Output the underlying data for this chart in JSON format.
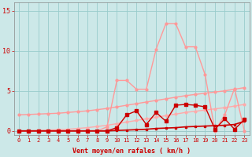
{
  "x": [
    0,
    1,
    2,
    3,
    4,
    5,
    6,
    7,
    8,
    9,
    10,
    11,
    12,
    13,
    14,
    15,
    16,
    17,
    18,
    19,
    20,
    21,
    22,
    23
  ],
  "line_pink_upper": [
    2.0,
    2.05,
    2.1,
    2.15,
    2.2,
    2.3,
    2.4,
    2.5,
    2.65,
    2.8,
    3.0,
    3.2,
    3.4,
    3.6,
    3.8,
    4.0,
    4.2,
    4.4,
    4.55,
    4.7,
    4.85,
    5.0,
    5.2,
    5.4
  ],
  "line_pink_lower": [
    0.0,
    0.0,
    0.05,
    0.1,
    0.15,
    0.2,
    0.3,
    0.4,
    0.55,
    0.7,
    0.9,
    1.1,
    1.3,
    1.5,
    1.7,
    1.9,
    2.1,
    2.3,
    2.45,
    2.6,
    2.75,
    2.9,
    3.1,
    3.3
  ],
  "line_pink_peaks": [
    0.0,
    0.0,
    0.0,
    0.0,
    0.0,
    0.0,
    0.0,
    0.0,
    0.0,
    0.5,
    6.3,
    6.3,
    5.2,
    5.2,
    10.2,
    13.4,
    13.4,
    10.5,
    10.5,
    7.0,
    0.0,
    2.0,
    5.3,
    0.0
  ],
  "line_dark_wavy": [
    0.0,
    0.0,
    0.0,
    0.0,
    0.0,
    0.0,
    0.0,
    0.0,
    0.0,
    0.0,
    0.4,
    2.0,
    2.5,
    0.8,
    2.3,
    1.2,
    3.2,
    3.3,
    3.2,
    3.0,
    0.2,
    1.5,
    0.2,
    1.4
  ],
  "line_dark_flat": [
    0.0,
    0.0,
    0.0,
    0.0,
    0.0,
    0.0,
    0.0,
    0.0,
    0.0,
    0.0,
    0.05,
    0.1,
    0.15,
    0.2,
    0.3,
    0.35,
    0.4,
    0.5,
    0.55,
    0.6,
    0.65,
    0.7,
    0.8,
    1.2
  ],
  "bg_color": "#cce8e8",
  "grid_color": "#99cccc",
  "axis_color": "#cc0000",
  "line_pink_upper_color": "#ff9999",
  "line_pink_lower_color": "#ffaaaa",
  "line_pink_peaks_color": "#ff9999",
  "line_dark_wavy_color": "#cc0000",
  "line_dark_flat_color": "#cc0000",
  "xlabel": "Vent moyen/en rafales ( km/h )",
  "ylim": [
    -0.5,
    16
  ],
  "xlim": [
    -0.5,
    23.5
  ],
  "yticks": [
    0,
    5,
    10,
    15
  ],
  "xticks": [
    0,
    1,
    2,
    3,
    4,
    5,
    6,
    7,
    8,
    9,
    10,
    11,
    12,
    13,
    14,
    15,
    16,
    17,
    18,
    19,
    20,
    21,
    22,
    23
  ]
}
